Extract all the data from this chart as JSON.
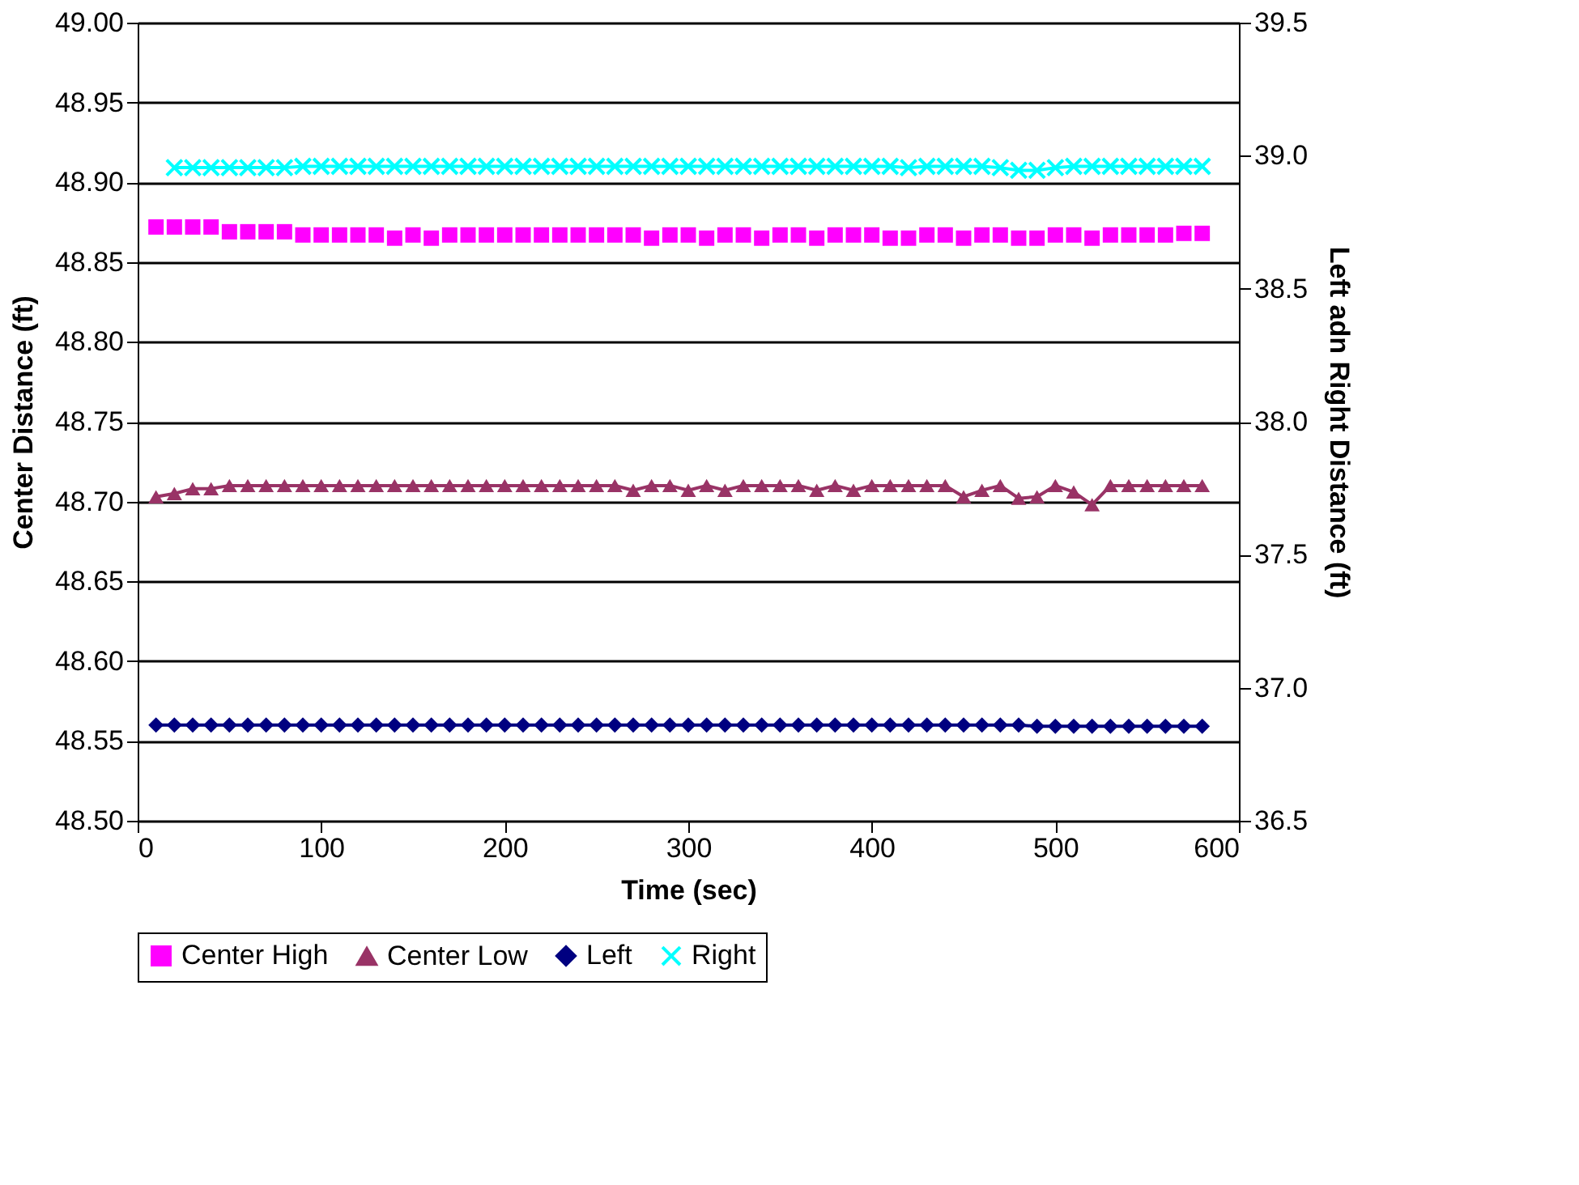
{
  "chart_data": {
    "type": "line",
    "xlabel": "Time (sec)",
    "ylabel": "Center Distance (ft)",
    "y2label": "Left adn Right Distance (ft)",
    "xlim": [
      0,
      600
    ],
    "xticks": [
      0,
      100,
      200,
      300,
      400,
      500,
      600
    ],
    "ylim": [
      48.5,
      49.0
    ],
    "yticks": [
      {
        "value": 48.5,
        "label": "48.50"
      },
      {
        "value": 48.55,
        "label": "48.55"
      },
      {
        "value": 48.6,
        "label": "48.60"
      },
      {
        "value": 48.65,
        "label": "48.65"
      },
      {
        "value": 48.7,
        "label": "48.70"
      },
      {
        "value": 48.75,
        "label": "48.75"
      },
      {
        "value": 48.8,
        "label": "48.80"
      },
      {
        "value": 48.85,
        "label": "48.85"
      },
      {
        "value": 48.9,
        "label": "48.90"
      },
      {
        "value": 48.95,
        "label": "48.95"
      },
      {
        "value": 49.0,
        "label": "49.00"
      }
    ],
    "y2lim": [
      36.5,
      39.5
    ],
    "y2ticks": [
      36.5,
      {
        "value": 37.0,
        "label": "37.0"
      },
      37.5,
      {
        "value": 38.0,
        "label": "38.0"
      },
      38.5,
      {
        "value": 39.0,
        "label": "39.0"
      },
      39.5
    ],
    "grid": "y",
    "legend": "bottom",
    "line_style": "solid",
    "x": [
      10,
      20,
      30,
      40,
      50,
      60,
      70,
      80,
      90,
      100,
      110,
      120,
      130,
      140,
      150,
      160,
      170,
      180,
      190,
      200,
      210,
      220,
      230,
      240,
      250,
      260,
      270,
      280,
      290,
      300,
      310,
      320,
      330,
      340,
      350,
      360,
      370,
      380,
      390,
      400,
      410,
      420,
      430,
      440,
      450,
      460,
      470,
      480,
      490,
      500,
      510,
      520,
      530,
      540,
      550,
      560,
      570,
      580
    ],
    "series": [
      {
        "name": "Center High",
        "type": "scatter",
        "marker": "square",
        "color": "#ff00ff",
        "values": [
          48.872,
          48.872,
          48.872,
          48.872,
          48.869,
          48.869,
          48.869,
          48.869,
          48.867,
          48.867,
          48.867,
          48.867,
          48.867,
          48.865,
          48.867,
          48.865,
          48.867,
          48.867,
          48.867,
          48.867,
          48.867,
          48.867,
          48.867,
          48.867,
          48.867,
          48.867,
          48.867,
          48.865,
          48.867,
          48.867,
          48.865,
          48.867,
          48.867,
          48.865,
          48.867,
          48.867,
          48.865,
          48.867,
          48.867,
          48.867,
          48.865,
          48.865,
          48.867,
          48.867,
          48.865,
          48.867,
          48.867,
          48.865,
          48.865,
          48.867,
          48.867,
          48.865,
          48.867,
          48.867,
          48.867,
          48.867,
          48.868,
          48.868
        ]
      },
      {
        "name": "Center Low",
        "marker": "triangle",
        "color": "#993366",
        "values": [
          48.703,
          48.705,
          48.708,
          48.708,
          48.71,
          48.71,
          48.71,
          48.71,
          48.71,
          48.71,
          48.71,
          48.71,
          48.71,
          48.71,
          48.71,
          48.71,
          48.71,
          48.71,
          48.71,
          48.71,
          48.71,
          48.71,
          48.71,
          48.71,
          48.71,
          48.71,
          48.707,
          48.71,
          48.71,
          48.707,
          48.71,
          48.707,
          48.71,
          48.71,
          48.71,
          48.71,
          48.707,
          48.71,
          48.707,
          48.71,
          48.71,
          48.71,
          48.71,
          48.71,
          48.703,
          48.707,
          48.71,
          48.702,
          48.703,
          48.71,
          48.706,
          48.698,
          48.71,
          48.71,
          48.71,
          48.71,
          48.71,
          48.71
        ]
      },
      {
        "name": "Left",
        "marker": "diamond",
        "axis": "y2",
        "color": "#000080",
        "values": [
          36.86,
          36.86,
          36.86,
          36.86,
          36.86,
          36.86,
          36.86,
          36.86,
          36.86,
          36.86,
          36.86,
          36.86,
          36.86,
          36.86,
          36.86,
          36.86,
          36.86,
          36.86,
          36.86,
          36.86,
          36.86,
          36.86,
          36.86,
          36.86,
          36.86,
          36.86,
          36.86,
          36.86,
          36.86,
          36.86,
          36.86,
          36.86,
          36.86,
          36.86,
          36.86,
          36.86,
          36.86,
          36.86,
          36.86,
          36.86,
          36.86,
          36.86,
          36.86,
          36.86,
          36.86,
          36.86,
          36.86,
          36.86,
          36.855,
          36.855,
          36.855,
          36.855,
          36.855,
          36.855,
          36.855,
          36.855,
          36.855,
          36.855
        ]
      },
      {
        "name": "Right",
        "marker": "cross",
        "axis": "y2",
        "color": "#00ffff",
        "values": [
          null,
          38.955,
          38.955,
          38.955,
          38.955,
          38.955,
          38.955,
          38.955,
          38.96,
          38.96,
          38.96,
          38.96,
          38.96,
          38.96,
          38.96,
          38.96,
          38.96,
          38.96,
          38.96,
          38.96,
          38.96,
          38.96,
          38.96,
          38.96,
          38.96,
          38.96,
          38.96,
          38.96,
          38.96,
          38.96,
          38.96,
          38.96,
          38.96,
          38.96,
          38.96,
          38.96,
          38.96,
          38.96,
          38.96,
          38.96,
          38.96,
          38.955,
          38.96,
          38.96,
          38.96,
          38.96,
          38.955,
          38.945,
          38.945,
          38.955,
          38.96,
          38.96,
          38.96,
          38.96,
          38.96,
          38.96,
          38.96,
          38.96
        ]
      }
    ]
  }
}
